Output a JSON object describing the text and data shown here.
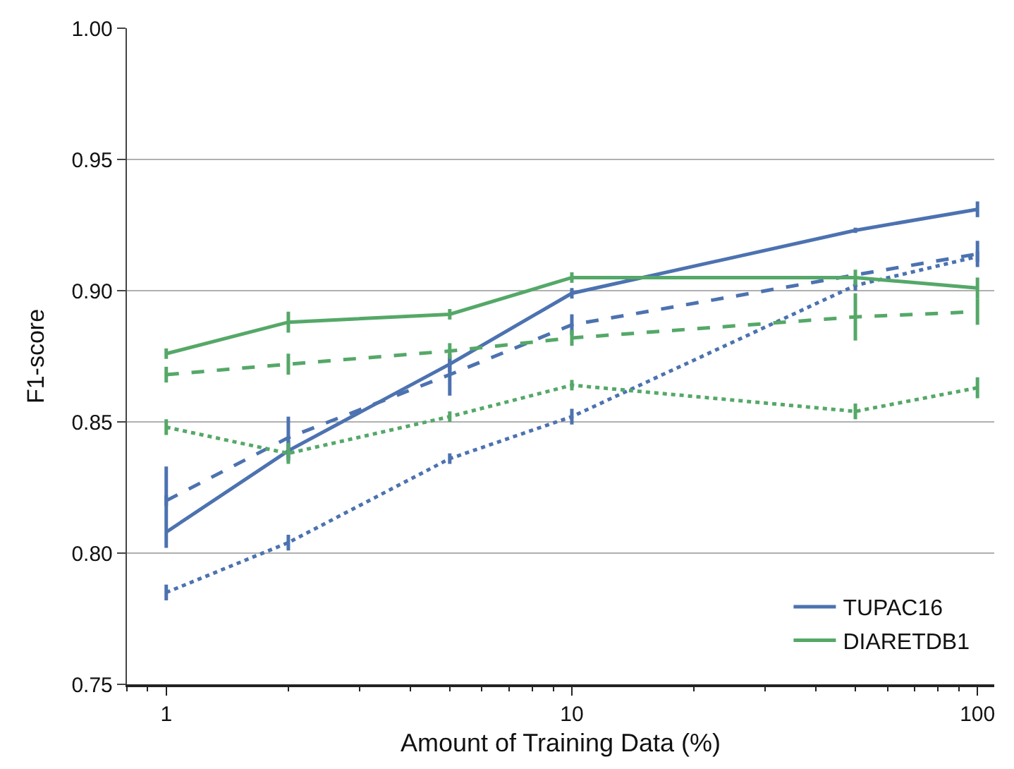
{
  "chart_data": {
    "type": "line",
    "xlabel": "Amount of Training Data (%)",
    "ylabel": "F1-score",
    "x": [
      1,
      2,
      5,
      10,
      50,
      100
    ],
    "log": "x",
    "xlim": [
      0.8,
      110
    ],
    "xticks": [
      1,
      10,
      100
    ],
    "ylim": [
      0.75,
      1.0
    ],
    "yticks": [
      0.75,
      {
        "value": 0.8,
        "label": "0.80"
      },
      0.85,
      {
        "value": 0.9,
        "label": "0.90"
      },
      0.95,
      {
        "value": 1.0,
        "label": "1.00"
      }
    ],
    "grid": "y",
    "legend": "bottom right",
    "marker": "none",
    "series": [
      {
        "name": "TUPAC16",
        "color": "#4c72b0",
        "line_style": "solid",
        "values": [
          0.808,
          0.839,
          0.872,
          0.899,
          0.923,
          0.931
        ],
        "errors": [
          [
            0.802,
            0.833
          ],
          0.004,
          0.003,
          0.002,
          0.001,
          0.003
        ]
      },
      {
        "color": "#4c72b0",
        "line_style": "dashed",
        "values": [
          0.82,
          0.844,
          0.868,
          0.887,
          0.906,
          0.914
        ],
        "errors": [
          0.002,
          0.008,
          0.008,
          0.004,
          null,
          0.005
        ]
      },
      {
        "color": "#4c72b0",
        "line_style": "dotted",
        "values": [
          0.785,
          0.804,
          0.836,
          0.852,
          0.902,
          0.913
        ],
        "errors": [
          0.003,
          0.003,
          0.002,
          0.003,
          0.002,
          0.002
        ]
      },
      {
        "name": "DIARETDB1",
        "color": "#55a868",
        "line_style": "solid",
        "values": [
          0.876,
          0.888,
          0.891,
          0.905,
          0.905,
          0.901
        ],
        "errors": [
          0.002,
          0.004,
          0.002,
          0.002,
          0.003,
          0.004
        ]
      },
      {
        "color": "#55a868",
        "line_style": "dashed",
        "values": [
          0.868,
          0.872,
          0.877,
          0.882,
          0.89,
          0.892
        ],
        "errors": [
          0.003,
          0.004,
          0.003,
          0.003,
          0.009,
          0.005
        ]
      },
      {
        "color": "#55a868",
        "line_style": "dotted",
        "values": [
          0.848,
          0.838,
          0.852,
          0.864,
          0.854,
          0.863
        ],
        "errors": [
          0.003,
          0.004,
          0.002,
          0.002,
          0.003,
          0.004
        ]
      }
    ]
  }
}
